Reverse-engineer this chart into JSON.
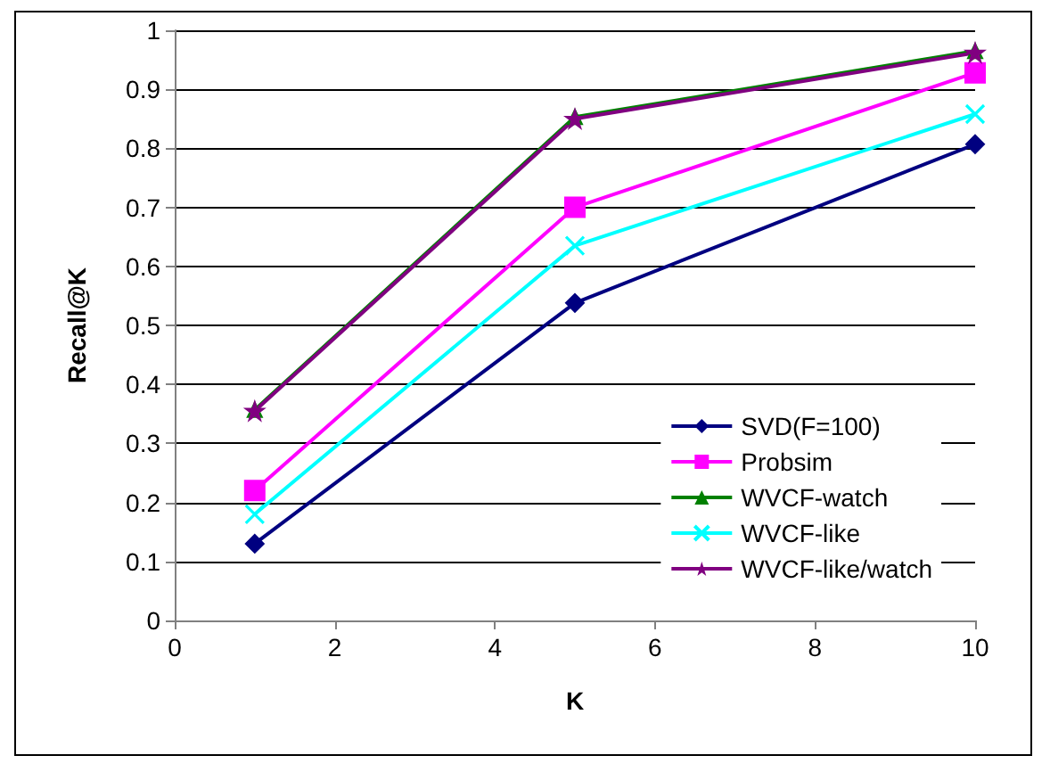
{
  "chart_data": {
    "type": "line",
    "xlabel": "K",
    "ylabel": "Recall@K",
    "x": [
      1,
      5,
      10
    ],
    "series": [
      {
        "name": "SVD(F=100)",
        "color": "#000080",
        "marker": "diamond",
        "values": [
          0.13,
          0.538,
          0.807
        ]
      },
      {
        "name": "Probsim",
        "color": "#ff00ff",
        "marker": "square",
        "values": [
          0.22,
          0.7,
          0.928
        ]
      },
      {
        "name": "WVCF-watch",
        "color": "#008000",
        "marker": "triangle",
        "values": [
          0.357,
          0.853,
          0.965
        ]
      },
      {
        "name": "WVCF-like",
        "color": "#00ffff",
        "marker": "cross",
        "values": [
          0.18,
          0.635,
          0.858
        ]
      },
      {
        "name": "WVCF-like/watch",
        "color": "#800080",
        "marker": "star",
        "values": [
          0.355,
          0.85,
          0.962
        ]
      }
    ],
    "xlim": [
      0,
      10
    ],
    "xticks": [
      0,
      2,
      4,
      6,
      8,
      10
    ],
    "ylim": [
      0,
      1
    ],
    "yticks": [
      0,
      0.1,
      0.2,
      0.3,
      0.4,
      0.5,
      0.6,
      0.7,
      0.8,
      0.9,
      1
    ],
    "grid": "y",
    "legend": "right"
  }
}
